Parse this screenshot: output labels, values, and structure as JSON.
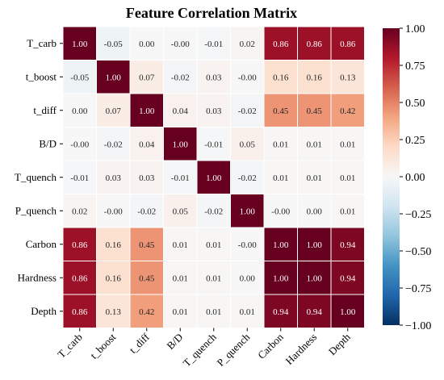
{
  "chart_data": {
    "type": "heatmap",
    "title": "Feature Correlation Matrix",
    "row_labels": [
      "T_carb",
      "t_boost",
      "t_diff",
      "B/D",
      "T_quench",
      "P_quench",
      "Carbon",
      "Hardness",
      "Depth"
    ],
    "col_labels": [
      "T_carb",
      "t_boost",
      "t_diff",
      "B/D",
      "T_quench",
      "P_quench",
      "Carbon",
      "Hardness",
      "Depth"
    ],
    "values": [
      [
        1.0,
        -0.05,
        0.0,
        -0.0,
        -0.01,
        0.02,
        0.86,
        0.86,
        0.86
      ],
      [
        -0.05,
        1.0,
        0.07,
        -0.02,
        0.03,
        -0.0,
        0.16,
        0.16,
        0.13
      ],
      [
        0.0,
        0.07,
        1.0,
        0.04,
        0.03,
        -0.02,
        0.45,
        0.45,
        0.42
      ],
      [
        -0.0,
        -0.02,
        0.04,
        1.0,
        -0.01,
        0.05,
        0.01,
        0.01,
        0.01
      ],
      [
        -0.01,
        0.03,
        0.03,
        -0.01,
        1.0,
        -0.02,
        0.01,
        0.01,
        0.01
      ],
      [
        0.02,
        -0.0,
        -0.02,
        0.05,
        -0.02,
        1.0,
        -0.0,
        0.0,
        0.01
      ],
      [
        0.86,
        0.16,
        0.45,
        0.01,
        0.01,
        -0.0,
        1.0,
        1.0,
        0.94
      ],
      [
        0.86,
        0.16,
        0.45,
        0.01,
        0.01,
        0.0,
        1.0,
        1.0,
        0.94
      ],
      [
        0.86,
        0.13,
        0.42,
        0.01,
        0.01,
        0.01,
        0.94,
        0.94,
        1.0
      ]
    ],
    "value_labels": [
      [
        "1.00",
        "-0.05",
        "0.00",
        "-0.00",
        "-0.01",
        "0.02",
        "0.86",
        "0.86",
        "0.86"
      ],
      [
        "-0.05",
        "1.00",
        "0.07",
        "-0.02",
        "0.03",
        "-0.00",
        "0.16",
        "0.16",
        "0.13"
      ],
      [
        "0.00",
        "0.07",
        "1.00",
        "0.04",
        "0.03",
        "-0.02",
        "0.45",
        "0.45",
        "0.42"
      ],
      [
        "-0.00",
        "-0.02",
        "0.04",
        "1.00",
        "-0.01",
        "0.05",
        "0.01",
        "0.01",
        "0.01"
      ],
      [
        "-0.01",
        "0.03",
        "0.03",
        "-0.01",
        "1.00",
        "-0.02",
        "0.01",
        "0.01",
        "0.01"
      ],
      [
        "0.02",
        "-0.00",
        "-0.02",
        "0.05",
        "-0.02",
        "1.00",
        "-0.00",
        "0.00",
        "0.01"
      ],
      [
        "0.86",
        "0.16",
        "0.45",
        "0.01",
        "0.01",
        "-0.00",
        "1.00",
        "1.00",
        "0.94"
      ],
      [
        "0.86",
        "0.16",
        "0.45",
        "0.01",
        "0.01",
        "0.00",
        "1.00",
        "1.00",
        "0.94"
      ],
      [
        "0.86",
        "0.13",
        "0.42",
        "0.01",
        "0.01",
        "0.01",
        "0.94",
        "0.94",
        "1.00"
      ]
    ],
    "vmin": -1.0,
    "vmax": 1.0,
    "colormap": "RdBu_r",
    "colormap_stops": [
      "#053061",
      "#2166ac",
      "#4393c3",
      "#92c5de",
      "#d1e5f0",
      "#f7f7f7",
      "#fddbc7",
      "#f4a582",
      "#d6604d",
      "#b2182b",
      "#67001f"
    ],
    "colorbar": {
      "ticks": [
        1.0,
        0.75,
        0.5,
        0.25,
        0.0,
        -0.25,
        -0.5,
        -0.75,
        -1.0
      ],
      "tick_labels": [
        "1.00",
        "0.75",
        "0.50",
        "0.25",
        "0.00",
        "−0.25",
        "−0.50",
        "−0.75",
        "−1.00"
      ]
    },
    "grid_line_color": "#ffffff"
  }
}
